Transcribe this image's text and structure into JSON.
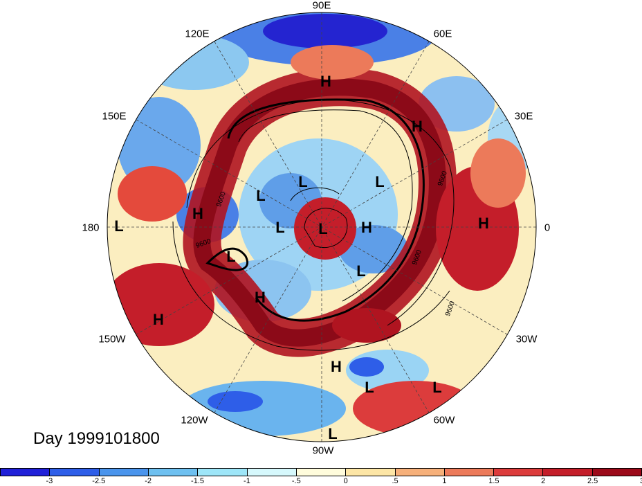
{
  "map": {
    "longitude_labels": [
      "90E",
      "60E",
      "30E",
      "0",
      "30W",
      "60W",
      "90W",
      "120W",
      "150W",
      "180",
      "150E",
      "120E"
    ],
    "pressure_systems": [
      "H",
      "H",
      "H",
      "H",
      "H",
      "H",
      "H",
      "H",
      "L",
      "L",
      "L",
      "L",
      "L",
      "L",
      "L",
      "L",
      "L",
      "L",
      "L"
    ],
    "contour_labels": [
      "9600",
      "9600",
      "9600",
      "9600",
      "9600"
    ],
    "date_label": "Day 1999101800"
  },
  "colorbar": {
    "colors": [
      "#2020d8",
      "#2e5ee8",
      "#4a94ec",
      "#6ec0f0",
      "#9ee6f8",
      "#d6f8fc",
      "#fffcdc",
      "#fde6a6",
      "#f6b07a",
      "#ec7a5a",
      "#dc3c3c",
      "#c41e2a",
      "#9c0a1a"
    ],
    "ticks": [
      "-3",
      "-2.5",
      "-2",
      "-1.5",
      "-1",
      "-.5",
      "0",
      ".5",
      "1",
      "1.5",
      "2",
      "2.5",
      "3"
    ]
  }
}
